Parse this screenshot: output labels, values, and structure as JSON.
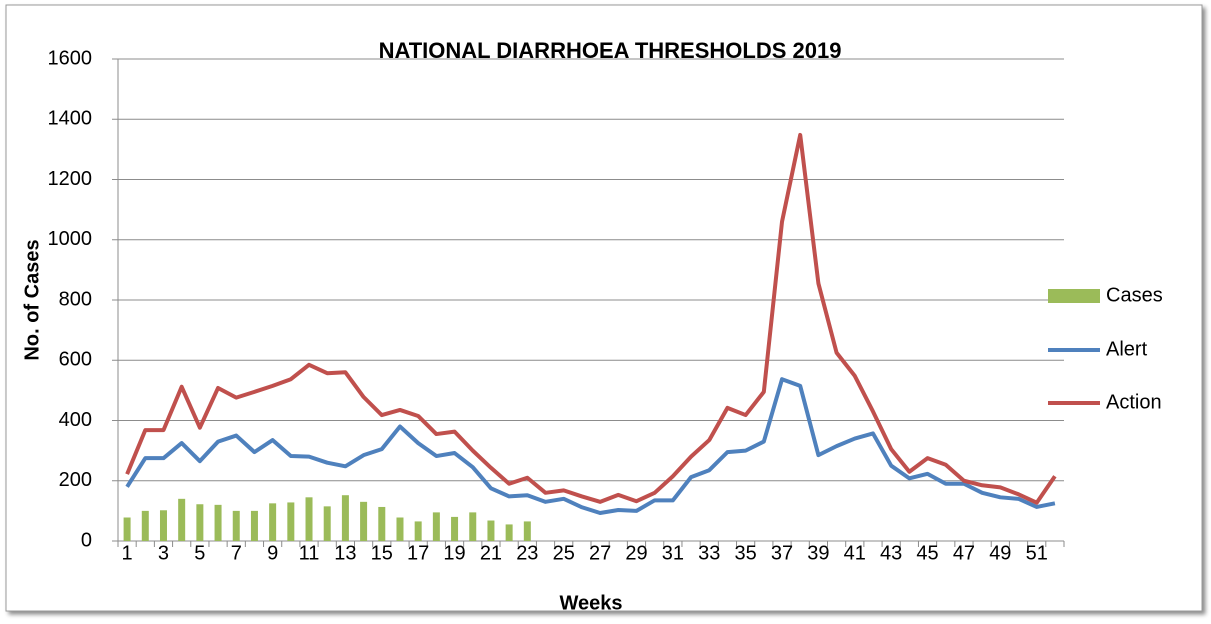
{
  "chart_data": {
    "type": "bar-line",
    "title": "NATIONAL DIARRHOEA THRESHOLDS 2019",
    "x_label": "Weeks",
    "y_label": "No. of Cases",
    "categories": [
      "1",
      null,
      "3",
      null,
      "5",
      null,
      "7",
      null,
      "9",
      null,
      "11",
      null,
      "13",
      null,
      "15",
      null,
      "17",
      null,
      "19",
      null,
      "21",
      null,
      "23",
      null,
      "25",
      null,
      "27",
      null,
      "29",
      null,
      "31",
      null,
      "33",
      null,
      "35",
      null,
      "37",
      null,
      "39",
      null,
      "41",
      null,
      "43",
      null,
      "45",
      null,
      "47",
      null,
      "49",
      null,
      "51",
      null
    ],
    "series": [
      {
        "name": "Cases",
        "type": "bar",
        "color": "#9bbb59",
        "values": [
          78,
          100,
          102,
          140,
          122,
          120,
          100,
          100,
          125,
          128,
          145,
          115,
          152,
          130,
          113,
          78,
          65,
          95,
          80,
          95,
          68,
          55,
          65,
          null,
          null,
          null,
          null,
          null,
          null,
          null,
          null,
          null,
          null,
          null,
          null,
          null,
          null,
          null,
          null,
          null,
          null,
          null,
          null,
          null,
          null,
          null,
          null,
          null,
          null,
          null,
          null,
          null
        ]
      },
      {
        "name": "Alert",
        "type": "line",
        "color": "#4f81bd",
        "values": [
          180,
          275,
          275,
          325,
          265,
          330,
          350,
          295,
          335,
          282,
          280,
          260,
          248,
          285,
          305,
          380,
          325,
          282,
          292,
          245,
          175,
          148,
          152,
          130,
          140,
          112,
          93,
          103,
          100,
          135,
          135,
          212,
          235,
          295,
          300,
          330,
          537,
          515,
          285,
          315,
          340,
          357,
          250,
          208,
          223,
          190,
          190,
          160,
          145,
          140,
          113,
          125
        ]
      },
      {
        "name": "Action",
        "type": "line",
        "color": "#c0504d",
        "values": [
          222,
          368,
          368,
          512,
          376,
          508,
          476,
          495,
          515,
          537,
          585,
          557,
          560,
          478,
          418,
          435,
          415,
          355,
          363,
          300,
          243,
          190,
          210,
          160,
          168,
          148,
          130,
          153,
          132,
          160,
          215,
          280,
          335,
          442,
          418,
          495,
          1060,
          1348,
          855,
          625,
          548,
          430,
          305,
          230,
          275,
          253,
          200,
          185,
          178,
          155,
          127,
          215
        ]
      }
    ],
    "ylim": [
      0,
      1600
    ],
    "yticks": [
      0,
      200,
      400,
      600,
      800,
      1000,
      1200,
      1400,
      1600
    ],
    "grid": true,
    "legend": "right"
  }
}
